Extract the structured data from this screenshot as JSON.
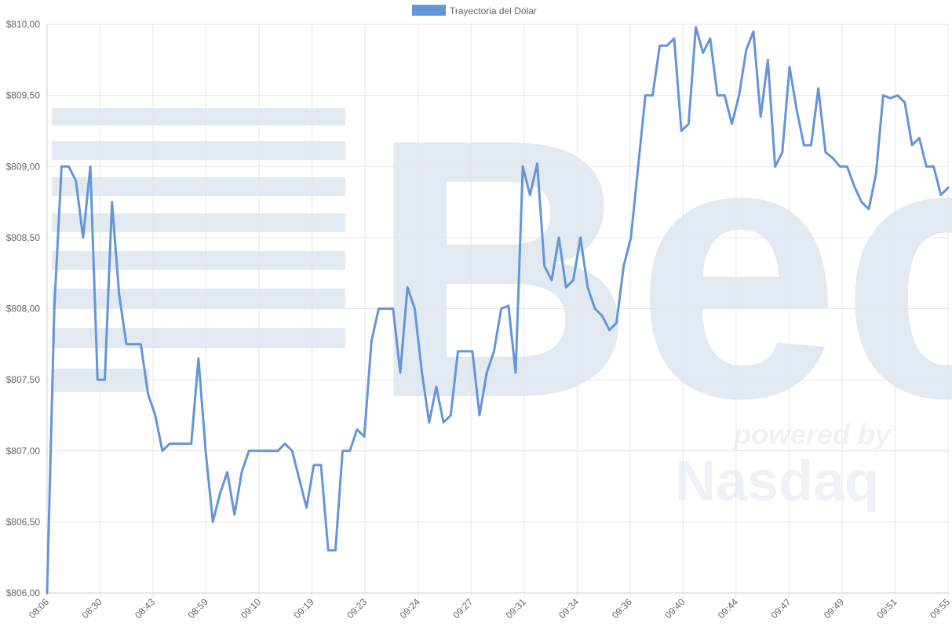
{
  "chart_data": {
    "type": "line",
    "title": "",
    "xlabel": "",
    "ylabel": "",
    "legend": {
      "position": "top-center"
    },
    "grid": true,
    "ylim": [
      806.0,
      810.0
    ],
    "yticks": [
      "$806,00",
      "$806,50",
      "$807,00",
      "$807,50",
      "$808,00",
      "$808,50",
      "$809,00",
      "$809,50",
      "$810,00"
    ],
    "ytick_values": [
      806.0,
      806.5,
      807.0,
      807.5,
      808.0,
      808.5,
      809.0,
      809.5,
      810.0
    ],
    "xticks": [
      "08:06",
      "08:30",
      "08:43",
      "08:59",
      "09:10",
      "09:19",
      "09:23",
      "09:24",
      "09:27",
      "09:31",
      "09:34",
      "09:36",
      "09:40",
      "09:44",
      "09:47",
      "09:49",
      "09:51",
      "09:55"
    ],
    "series": [
      {
        "name": "Trayectoria del Dólar",
        "color": "#6495d9",
        "values": [
          806.0,
          808.0,
          809.0,
          809.0,
          808.9,
          808.5,
          809.0,
          807.5,
          807.5,
          808.75,
          808.1,
          807.75,
          807.75,
          807.75,
          807.4,
          807.25,
          807.0,
          807.05,
          807.05,
          807.05,
          807.05,
          807.65,
          807.0,
          806.5,
          806.7,
          806.85,
          806.55,
          806.85,
          807.0,
          807.0,
          807.0,
          807.0,
          807.0,
          807.05,
          807.0,
          806.8,
          806.6,
          806.9,
          806.9,
          806.3,
          806.3,
          807.0,
          807.0,
          807.15,
          807.1,
          807.77,
          808.0,
          808.0,
          808.0,
          807.55,
          808.15,
          808.0,
          807.55,
          807.2,
          807.45,
          807.2,
          807.25,
          807.7,
          807.7,
          807.7,
          807.25,
          807.55,
          807.7,
          808.0,
          808.02,
          807.55,
          809.0,
          808.8,
          809.02,
          808.3,
          808.2,
          808.5,
          808.15,
          808.2,
          808.5,
          808.15,
          808.0,
          807.95,
          807.85,
          807.9,
          808.3,
          808.5,
          809.0,
          809.5,
          809.5,
          809.85,
          809.85,
          809.9,
          809.25,
          809.3,
          809.98,
          809.8,
          809.9,
          809.5,
          809.5,
          809.3,
          809.5,
          809.82,
          809.95,
          809.35,
          809.75,
          809.0,
          809.1,
          809.7,
          809.4,
          809.15,
          809.15,
          809.55,
          809.1,
          809.06,
          809.0,
          809.0,
          808.86,
          808.75,
          808.7,
          808.95,
          809.5,
          809.48,
          809.5,
          809.45,
          809.15,
          809.2,
          809.0,
          809.0,
          808.8,
          808.85
        ]
      }
    ]
  },
  "watermark": {
    "brand_text": "Bec",
    "tagline": "powered by",
    "partner": "Nasdaq"
  }
}
